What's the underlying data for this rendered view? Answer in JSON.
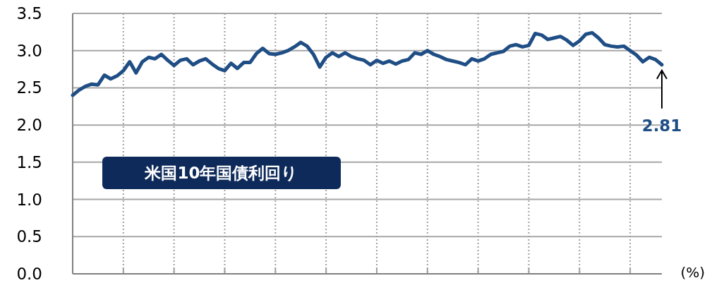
{
  "chart_data": {
    "type": "line",
    "categories": [
      null,
      null,
      null,
      null,
      null,
      null,
      null,
      null,
      null,
      null,
      null,
      null,
      null,
      null,
      null,
      null,
      null,
      null,
      null,
      null,
      null,
      null,
      null,
      null,
      null,
      null,
      null,
      null,
      null,
      null,
      null,
      null,
      null,
      null,
      null,
      null,
      null,
      null,
      null,
      null,
      null,
      null,
      null,
      null,
      null,
      null,
      null,
      null,
      null,
      null,
      null,
      null,
      null,
      null,
      null,
      null,
      null,
      null,
      null,
      null,
      null,
      null,
      null,
      null,
      null,
      null,
      null,
      null,
      null,
      null,
      null,
      null,
      null,
      null,
      null,
      null,
      null,
      null,
      null,
      null,
      null,
      null,
      null,
      null,
      null,
      null,
      null,
      null,
      null,
      null,
      null,
      null,
      null,
      null
    ],
    "series": [
      {
        "color": "#1f4e85",
        "values": [
          2.4,
          2.47,
          2.52,
          2.55,
          2.54,
          2.67,
          2.62,
          2.66,
          2.73,
          2.85,
          2.7,
          2.85,
          2.91,
          2.89,
          2.95,
          2.87,
          2.8,
          2.87,
          2.89,
          2.81,
          2.86,
          2.89,
          2.82,
          2.76,
          2.73,
          2.83,
          2.76,
          2.84,
          2.84,
          2.96,
          3.03,
          2.96,
          2.95,
          2.97,
          3.0,
          3.05,
          3.11,
          3.06,
          2.95,
          2.78,
          2.91,
          2.97,
          2.92,
          2.97,
          2.92,
          2.89,
          2.87,
          2.81,
          2.87,
          2.83,
          2.86,
          2.82,
          2.86,
          2.88,
          2.97,
          2.95,
          3.0,
          2.95,
          2.92,
          2.88,
          2.86,
          2.84,
          2.81,
          2.89,
          2.86,
          2.89,
          2.95,
          2.97,
          2.99,
          3.06,
          3.08,
          3.05,
          3.07,
          3.23,
          3.21,
          3.15,
          3.17,
          3.19,
          3.14,
          3.07,
          3.13,
          3.22,
          3.24,
          3.17,
          3.08,
          3.06,
          3.05,
          3.06,
          3.0,
          2.94,
          2.85,
          2.91,
          2.88,
          2.81
        ]
      }
    ],
    "ylim": [
      0,
      3.5
    ],
    "yticks": [
      {
        "value": 0,
        "label": "0.0"
      },
      {
        "value": 0.5,
        "label": "0.5"
      },
      {
        "value": 1,
        "label": "1.0"
      },
      {
        "value": 1.5,
        "label": "1.5"
      },
      {
        "value": 2,
        "label": "2.0"
      },
      {
        "value": 2.5,
        "label": "2.5"
      },
      {
        "value": 3,
        "label": "3.0"
      },
      {
        "value": 3.5,
        "label": "3.5"
      }
    ],
    "tick_labels": "y",
    "grid": true,
    "annotations": [
      {
        "text": "2.81",
        "y": 2.81
      },
      "米国10年国債利回り",
      "(%)"
    ]
  }
}
